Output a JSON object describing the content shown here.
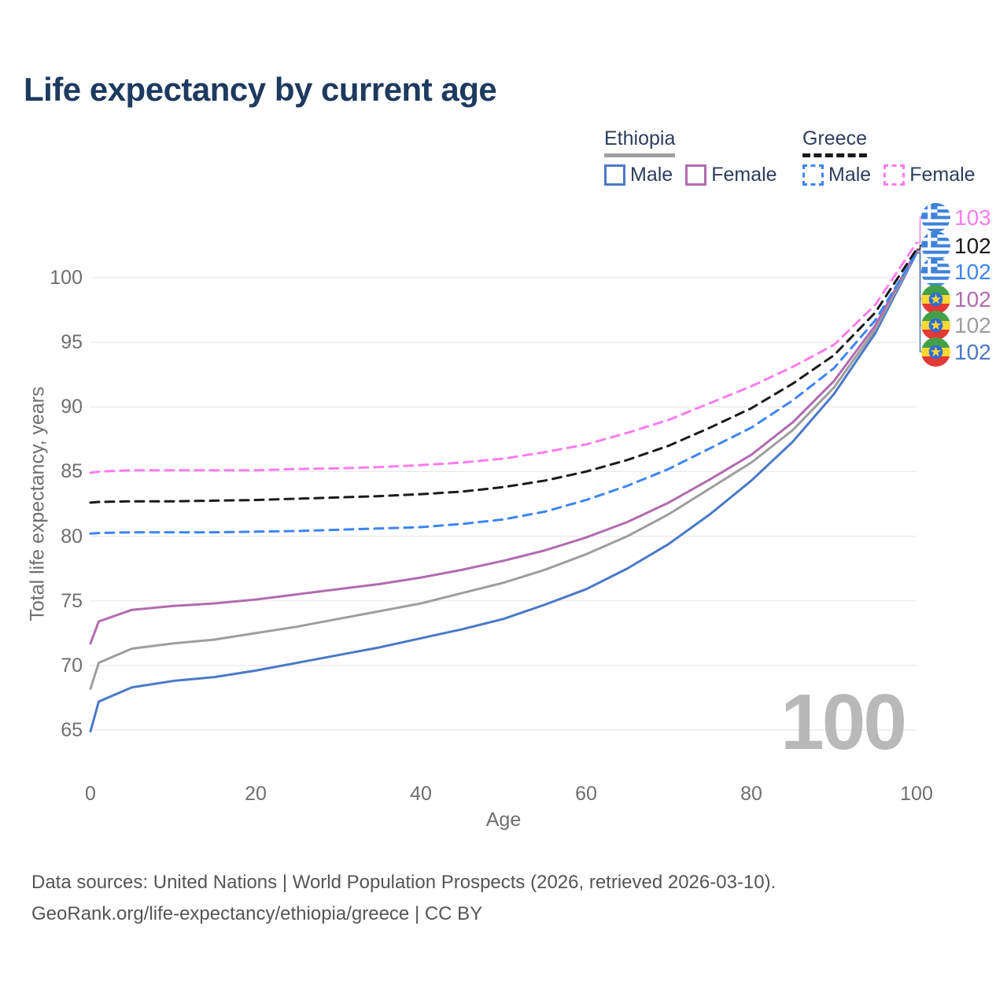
{
  "title": "Life expectancy by current age",
  "watermark": "100",
  "legend": {
    "groups": [
      {
        "name": "Ethiopia",
        "line_style": "solid",
        "underline_color": "#9e9e9e",
        "items": [
          {
            "label": "Male",
            "color": "#4b79c7"
          },
          {
            "label": "Female",
            "color": "#b16bb0"
          }
        ]
      },
      {
        "name": "Greece",
        "line_style": "dashed",
        "underline_color": "#1a1a1a",
        "items": [
          {
            "label": "Male",
            "color": "#3d85f2"
          },
          {
            "label": "Female",
            "color": "#fc7cef"
          }
        ]
      }
    ]
  },
  "chart_data": {
    "type": "line",
    "title": "Life expectancy by current age",
    "xlabel": "Age",
    "ylabel": "Total life expectancy, years",
    "xlim": [
      0,
      100
    ],
    "ylim": [
      63,
      104
    ],
    "xticks": [
      0,
      20,
      40,
      60,
      80,
      100
    ],
    "yticks": [
      65,
      70,
      75,
      80,
      85,
      90,
      95,
      100
    ],
    "grid": true,
    "legend_position": "top-right",
    "current_age_indicator": "100",
    "x": [
      0,
      1,
      5,
      10,
      15,
      20,
      25,
      30,
      35,
      40,
      45,
      50,
      55,
      60,
      65,
      70,
      75,
      80,
      85,
      90,
      95,
      100
    ],
    "series": [
      {
        "name": "Greece Female",
        "country": "greece",
        "color": "#fc7cef",
        "dash": true,
        "end_label": "103",
        "values": [
          84.9,
          85.0,
          85.1,
          85.1,
          85.1,
          85.1,
          85.2,
          85.25,
          85.35,
          85.5,
          85.7,
          86.0,
          86.5,
          87.1,
          88.0,
          89.0,
          90.3,
          91.6,
          93.1,
          94.8,
          97.9,
          102.7
        ]
      },
      {
        "name": "Greece Total",
        "country": "greece",
        "color": "#1a1a1a",
        "dash": true,
        "end_label": "102",
        "values": [
          82.6,
          82.65,
          82.7,
          82.7,
          82.75,
          82.8,
          82.9,
          83.0,
          83.1,
          83.25,
          83.45,
          83.8,
          84.3,
          85.0,
          85.9,
          87.0,
          88.4,
          89.9,
          91.8,
          94.0,
          97.3,
          102.2
        ]
      },
      {
        "name": "Greece Male",
        "country": "greece",
        "color": "#3d85f2",
        "dash": true,
        "end_label": "102",
        "values": [
          80.2,
          80.25,
          80.3,
          80.3,
          80.3,
          80.35,
          80.4,
          80.5,
          80.6,
          80.7,
          80.95,
          81.3,
          81.9,
          82.8,
          83.9,
          85.2,
          86.8,
          88.4,
          90.5,
          93.0,
          96.7,
          101.9
        ]
      },
      {
        "name": "Ethiopia Female",
        "country": "ethiopia",
        "color": "#b16bb0",
        "dash": false,
        "end_label": "102",
        "values": [
          71.7,
          73.4,
          74.3,
          74.6,
          74.8,
          75.1,
          75.5,
          75.9,
          76.3,
          76.8,
          77.4,
          78.1,
          78.9,
          79.9,
          81.1,
          82.6,
          84.4,
          86.3,
          88.8,
          92.0,
          96.3,
          102.1
        ]
      },
      {
        "name": "Ethiopia Total",
        "country": "ethiopia",
        "color": "#9e9e9e",
        "dash": false,
        "end_label": "102",
        "values": [
          68.2,
          70.2,
          71.3,
          71.7,
          72.0,
          72.5,
          73.0,
          73.6,
          74.2,
          74.8,
          75.6,
          76.4,
          77.4,
          78.6,
          80.0,
          81.7,
          83.7,
          85.7,
          88.2,
          91.5,
          96.0,
          102.0
        ]
      },
      {
        "name": "Ethiopia Male",
        "country": "ethiopia",
        "color": "#4b79c7",
        "dash": false,
        "end_label": "102",
        "values": [
          64.9,
          67.2,
          68.3,
          68.8,
          69.1,
          69.6,
          70.2,
          70.8,
          71.4,
          72.1,
          72.8,
          73.6,
          74.7,
          75.9,
          77.5,
          79.4,
          81.7,
          84.3,
          87.3,
          91.0,
          95.7,
          101.9
        ]
      }
    ]
  },
  "footer": {
    "line1": "Data sources: United Nations | World Population Prospects (2026, retrieved 2026-03-10).",
    "line2": "GeoRank.org/life-expectancy/ethiopia/greece | CC BY"
  }
}
